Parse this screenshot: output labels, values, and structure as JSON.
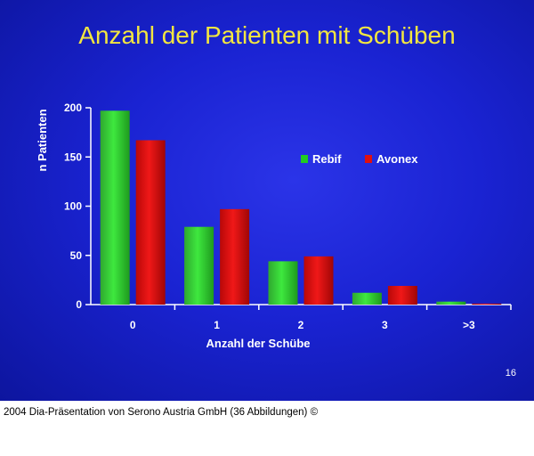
{
  "slide": {
    "title": "Anzahl der Patienten mit Schüben",
    "number": "16",
    "background": "#1a23d2",
    "title_color": "#f2e640"
  },
  "caption": "2004 Dia-Präsentation von Serono Austria GmbH (36 Abbildungen) ©",
  "chart_data": {
    "type": "bar",
    "title": "",
    "xlabel": "Anzahl der Schübe",
    "ylabel": "n Patienten",
    "categories": [
      "0",
      "1",
      "2",
      "3",
      ">3"
    ],
    "series": [
      {
        "name": "Rebif",
        "color": "#22cc22",
        "values": [
          197,
          79,
          44,
          12,
          3
        ]
      },
      {
        "name": "Avonex",
        "color": "#e01010",
        "values": [
          167,
          97,
          49,
          19,
          1
        ]
      }
    ],
    "ylim": [
      0,
      200
    ],
    "yticks": [
      0,
      50,
      100,
      150,
      200
    ],
    "grid": false,
    "legend_position": "top-right"
  }
}
